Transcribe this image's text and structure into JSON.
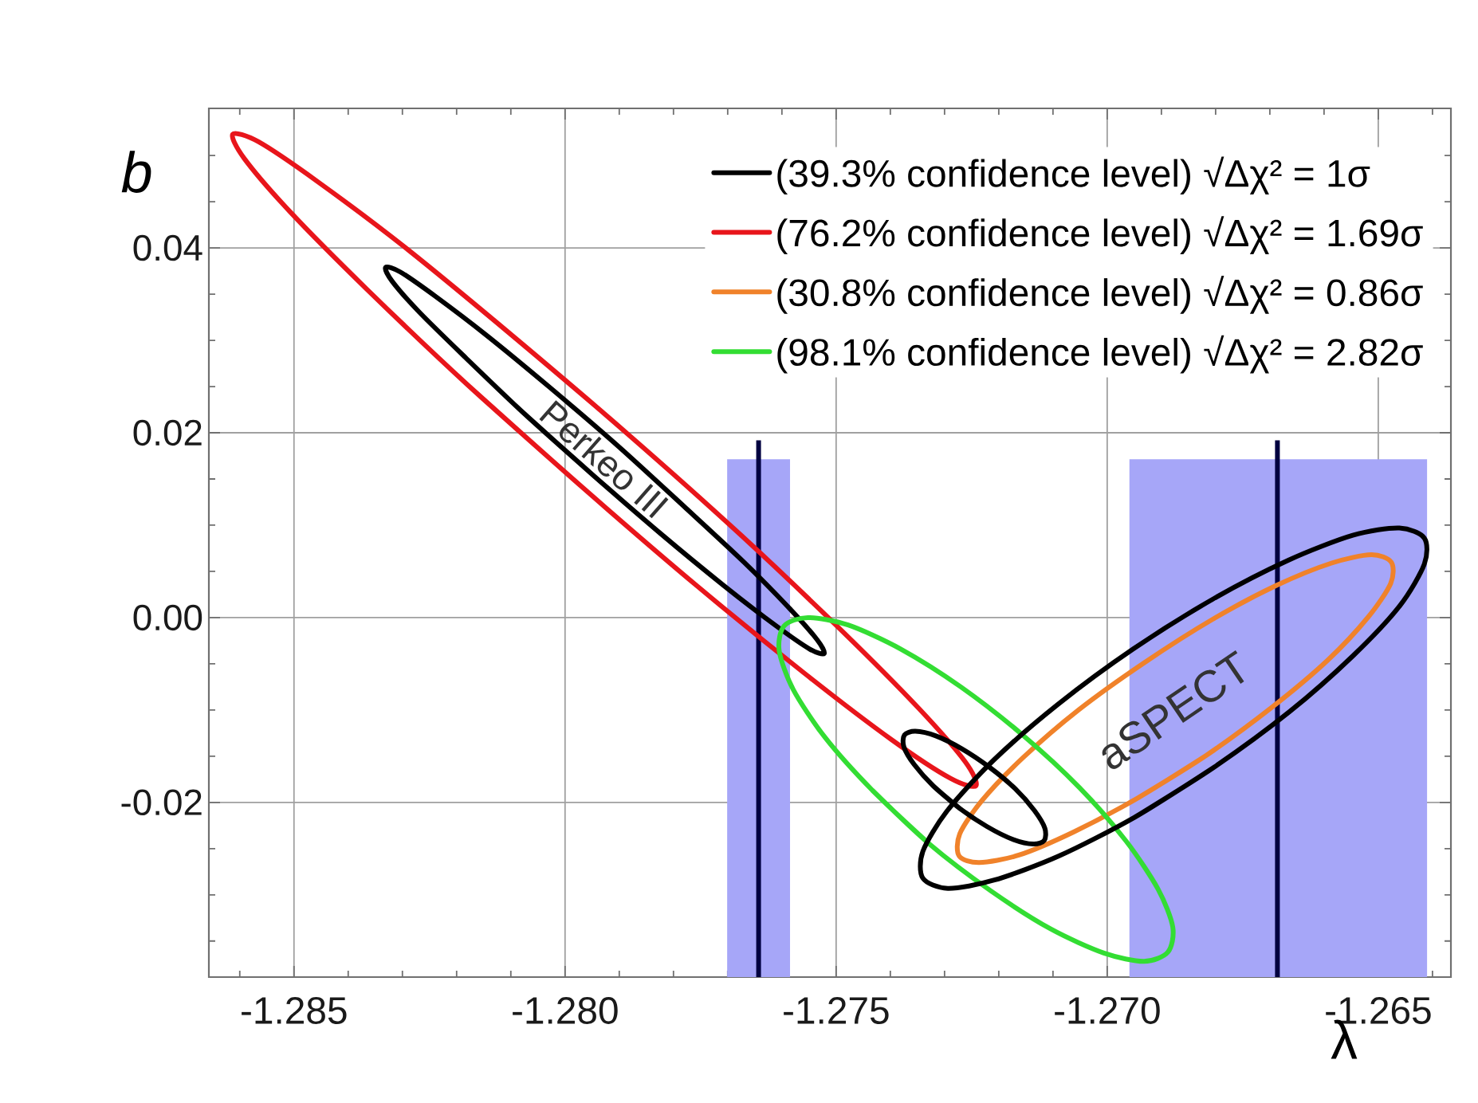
{
  "chart_data": {
    "type": "line",
    "xlabel": "λ",
    "ylabel": "b",
    "xlim": [
      -1.28657,
      -1.26366
    ],
    "ylim": [
      -0.0389,
      0.0551
    ],
    "xticks": [
      {
        "value": -1.286,
        "label": null
      },
      -1.285,
      {
        "value": -1.284,
        "label": null
      },
      {
        "value": -1.283,
        "label": null
      },
      {
        "value": -1.282,
        "label": null
      },
      {
        "value": -1.281,
        "label": null
      },
      {
        "value": -1.28,
        "label": "-1.280"
      },
      {
        "value": -1.279,
        "label": null
      },
      {
        "value": -1.278,
        "label": null
      },
      {
        "value": -1.277,
        "label": null
      },
      {
        "value": -1.276,
        "label": null
      },
      -1.275,
      {
        "value": -1.274,
        "label": null
      },
      {
        "value": -1.273,
        "label": null
      },
      {
        "value": -1.272,
        "label": null
      },
      {
        "value": -1.271,
        "label": null
      },
      {
        "value": -1.27,
        "label": "-1.270"
      },
      {
        "value": -1.269,
        "label": null
      },
      {
        "value": -1.268,
        "label": null
      },
      {
        "value": -1.267,
        "label": null
      },
      {
        "value": -1.266,
        "label": null
      },
      -1.265,
      {
        "value": -1.264,
        "label": null
      }
    ],
    "yticks": [
      {
        "value": -0.035,
        "label": null
      },
      {
        "value": -0.03,
        "label": null
      },
      {
        "value": -0.025,
        "label": null
      },
      -0.02,
      {
        "value": -0.015,
        "label": null
      },
      {
        "value": -0.01,
        "label": null
      },
      {
        "value": -0.005,
        "label": null
      },
      {
        "value": 0,
        "label": "0.00"
      },
      {
        "value": 0.005,
        "label": null
      },
      {
        "value": 0.01,
        "label": null
      },
      {
        "value": 0.015,
        "label": null
      },
      0.02,
      {
        "value": 0.025,
        "label": null
      },
      {
        "value": 0.03,
        "label": null
      },
      {
        "value": 0.035,
        "label": null
      },
      0.04,
      {
        "value": 0.045,
        "label": null
      },
      {
        "value": 0.05,
        "label": null
      }
    ],
    "grid": true,
    "legend": "top right",
    "bands": [
      {
        "axis": "x",
        "from": -1.27701,
        "to": -1.27585,
        "color": "#a6a6f8"
      },
      {
        "axis": "x",
        "from": -1.26959,
        "to": -1.2641,
        "color": "#a6a6f8"
      }
    ],
    "ref_lines": [
      {
        "axis": "x",
        "value": -1.27643,
        "color": "#000040"
      },
      {
        "axis": "x",
        "value": -1.26686,
        "color": "#000040"
      }
    ],
    "series": [
      {
        "name": "(39.3% confidence level) √Δχ² = 1σ",
        "color": "#000000",
        "x": [
          -1.2795,
          -1.28074,
          -1.28183,
          -1.28268,
          -1.28319,
          -1.28331,
          -1.28304,
          -1.2824,
          -1.28146,
          -1.2803,
          -1.27903,
          -1.2778,
          -1.2767,
          -1.27586,
          -1.27535,
          -1.27522,
          -1.27549,
          -1.27613,
          -1.27708,
          -1.27824,
          -1.2795,
          -1.28074
        ],
        "values": [
          0.0155,
          0.022,
          0.0281,
          0.033,
          0.0364,
          0.0379,
          0.0374,
          0.0348,
          0.0306,
          0.025,
          0.0186,
          0.012,
          0.006,
          0.001,
          -0.0024,
          -0.0039,
          -0.0034,
          -0.0008,
          0.0035,
          0.0091,
          0.0155,
          0.022
        ]
      },
      {
        "name": "(76.2% confidence level) √Δχ² = 1.69σ",
        "color": "#e8151b",
        "x": [
          -1.2797,
          -1.2818,
          -1.28365,
          -1.28507,
          -1.28592,
          -1.28613,
          -1.28566,
          -1.28457,
          -1.28296,
          -1.28099,
          -1.27885,
          -1.27675,
          -1.2749,
          -1.27348,
          -1.27262,
          -1.27242,
          -1.27289,
          -1.27398,
          -1.27559,
          -1.27756,
          -1.2797,
          -1.2818
        ],
        "values": [
          0.0142,
          0.0252,
          0.0355,
          0.0439,
          0.0497,
          0.0523,
          0.0515,
          0.0472,
          0.0401,
          0.0306,
          0.0199,
          0.0089,
          -0.0014,
          -0.0098,
          -0.0156,
          -0.0182,
          -0.0174,
          -0.0132,
          -0.006,
          0.0034,
          0.0142,
          0.0252
        ]
      },
      {
        "name": "(30.8% confidence level) √Δχ² = 0.86σ",
        "color": "#f0822a",
        "x": [
          -1.26817,
          -1.26943,
          -1.27062,
          -1.27163,
          -1.27236,
          -1.27273,
          -1.27272,
          -1.27231,
          -1.27156,
          -1.27053,
          -1.26932,
          -1.26806,
          -1.26687,
          -1.26586,
          -1.26513,
          -1.26476,
          -1.26477,
          -1.26518,
          -1.26593,
          -1.26696,
          -1.26817,
          -1.26943
        ],
        "values": [
          -0.0149,
          -0.0195,
          -0.0232,
          -0.0257,
          -0.0265,
          -0.0258,
          -0.0234,
          -0.0198,
          -0.0152,
          -0.01,
          -0.0049,
          -0.0002,
          0.0035,
          0.0059,
          0.0068,
          0.006,
          0.0037,
          0.0001,
          -0.0046,
          -0.0097,
          -0.0149,
          -0.0195
        ]
      },
      {
        "name": "(98.1% confidence level) √Δχ² = 2.82σ",
        "color": "#33dd33",
        "x": [
          -1.27328,
          -1.27433,
          -1.2752,
          -1.27579,
          -1.27605,
          -1.27596,
          -1.27552,
          -1.27478,
          -1.27381,
          -1.2727,
          -1.27156,
          -1.27051,
          -1.26965,
          -1.26906,
          -1.26879,
          -1.26888,
          -1.26932,
          -1.27006,
          -1.27104,
          -1.27214,
          -1.27328,
          -1.27433
        ],
        "values": [
          -0.0245,
          -0.0187,
          -0.013,
          -0.0078,
          -0.0036,
          -0.0009,
          0.0,
          -0.0008,
          -0.0034,
          -0.0075,
          -0.0127,
          -0.0184,
          -0.0242,
          -0.0294,
          -0.0335,
          -0.0362,
          -0.0372,
          -0.0363,
          -0.0337,
          -0.0296,
          -0.0245,
          -0.0187
        ]
      },
      {
        "color": "#000000",
        "x": [
          -1.27273,
          -1.27321,
          -1.27356,
          -1.27375,
          -1.27374,
          -1.27354,
          -1.27316,
          -1.27268,
          -1.27217,
          -1.2717,
          -1.27134,
          -1.27115,
          -1.27116,
          -1.27136,
          -1.27174,
          -1.27222,
          -1.27273,
          -1.27321
        ],
        "values": [
          -0.0206,
          -0.0182,
          -0.0159,
          -0.014,
          -0.0127,
          -0.0123,
          -0.0128,
          -0.0142,
          -0.0162,
          -0.0185,
          -0.0209,
          -0.0228,
          -0.0241,
          -0.0245,
          -0.024,
          -0.0226,
          -0.0206,
          -0.0182
        ]
      },
      {
        "color": "#000000",
        "x": [
          -1.26803,
          -1.26949,
          -1.27089,
          -1.27208,
          -1.27294,
          -1.2734,
          -1.2734,
          -1.27295,
          -1.27209,
          -1.27091,
          -1.26952,
          -1.26805,
          -1.26666,
          -1.26547,
          -1.26461,
          -1.26415,
          -1.26415,
          -1.2646,
          -1.26546,
          -1.26664,
          -1.26803,
          -1.26949
        ],
        "values": [
          -0.0162,
          -0.0216,
          -0.0258,
          -0.0284,
          -0.0293,
          -0.0282,
          -0.0253,
          -0.0209,
          -0.0154,
          -0.0094,
          -0.0034,
          0.002,
          0.0062,
          0.0089,
          0.0097,
          0.0086,
          0.0058,
          0.0013,
          -0.0041,
          -0.0102,
          -0.0162,
          -0.0216
        ]
      }
    ],
    "annotations": [
      "Perkeo III",
      "aSPECT"
    ]
  }
}
